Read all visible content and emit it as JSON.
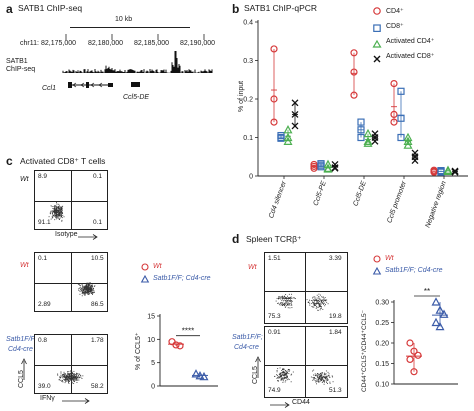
{
  "panel_a": {
    "letter": "a",
    "title": "SATB1 ChIP-seq",
    "scale": "10 kb",
    "chrom": "chr11:",
    "coords": [
      "82,175,000",
      "82,180,000",
      "82,185,000",
      "82,190,000"
    ],
    "track_label_1": "SATB1",
    "track_label_2": "ChIP-seq",
    "gene_1": "Ccl1",
    "gene_2": "Ccl5-DE"
  },
  "panel_b": {
    "letter": "b",
    "title": "SATB1 ChIP-qPCR",
    "ylabel": "% of input",
    "legend": [
      "CD4⁺",
      "CD8⁺",
      "Activated CD4⁺",
      "Activated CD8⁺"
    ],
    "colors": {
      "cd4": "#d6393a",
      "cd8": "#3b6fb6",
      "act_cd4": "#4caf50",
      "act_cd8": "#111111"
    }
  },
  "chart_data": {
    "type": "scatter",
    "categories": [
      "Cd4 silencer",
      "Ccl5-PE",
      "Ccl5-DE",
      "Ccl5 promoter",
      "Negative region"
    ],
    "ylabel": "% of input",
    "ylim": [
      0,
      0.4
    ],
    "yticks": [
      "0",
      "0.1",
      "0.2",
      "0.3",
      "0.4"
    ],
    "series": [
      {
        "name": "CD4⁺",
        "marker": "circle",
        "color": "#d6393a",
        "values": [
          [
            0.33,
            0.2,
            0.14
          ],
          [
            0.03,
            0.025,
            0.02
          ],
          [
            0.32,
            0.27,
            0.21
          ],
          [
            0.24,
            0.16,
            0.14
          ],
          [
            0.015,
            0.01,
            0.012
          ]
        ]
      },
      {
        "name": "CD8⁺",
        "marker": "square",
        "color": "#3b6fb6",
        "values": [
          [
            0.105,
            0.1,
            0.098
          ],
          [
            0.032,
            0.028,
            0.024
          ],
          [
            0.14,
            0.12,
            0.1
          ],
          [
            0.22,
            0.15,
            0.1
          ],
          [
            0.012,
            0.01,
            0.014
          ]
        ]
      },
      {
        "name": "Activated CD4⁺",
        "marker": "triangle",
        "color": "#4caf50",
        "values": [
          [
            0.12,
            0.1,
            0.09
          ],
          [
            0.03,
            0.02,
            0.018
          ],
          [
            0.11,
            0.09,
            0.085
          ],
          [
            0.1,
            0.09,
            0.08
          ],
          [
            0.015,
            0.012,
            0.013
          ]
        ]
      },
      {
        "name": "Activated CD8⁺",
        "marker": "x",
        "color": "#111111",
        "values": [
          [
            0.19,
            0.16,
            0.13
          ],
          [
            0.03,
            0.022,
            0.02
          ],
          [
            0.11,
            0.1,
            0.09
          ],
          [
            0.06,
            0.05,
            0.04
          ],
          [
            0.013,
            0.011,
            0.01
          ]
        ]
      }
    ]
  },
  "panel_c": {
    "letter": "c",
    "title": "Activated CD8⁺ T cells",
    "row_labels": [
      "Wt",
      "Wt",
      "Satb1F/F;",
      "Cd4-cre"
    ],
    "plots": [
      {
        "q": [
          "8.9",
          "0.1",
          "91.1",
          "0.1"
        ]
      },
      {
        "q": [
          "0.1",
          "10.5",
          "2.89",
          "86.5"
        ]
      },
      {
        "q": [
          "0.8",
          "1.78",
          "39.0",
          "58.2"
        ]
      }
    ],
    "xlabel_1": "Isotype",
    "xlabel_2": "IFNγ",
    "ylabel": "CCL5",
    "legend": [
      "Wt",
      "Satb1F/F; Cd4-cre"
    ],
    "stat_ylabel": "% of CCL5⁺",
    "stat_yticks": [
      "0",
      "5",
      "10",
      "15"
    ],
    "sig": "****",
    "stat_values": {
      "wt": [
        9.5,
        8.8,
        8.6
      ],
      "ko": [
        2.6,
        2.2,
        2.0
      ]
    }
  },
  "panel_d": {
    "letter": "d",
    "title": "Spleen TCRβ⁺",
    "row_labels": [
      "Wt",
      "Satb1F/F;",
      "Cd4-cre"
    ],
    "plots": [
      {
        "q": [
          "1.51",
          "3.39",
          "75.3",
          "19.8"
        ]
      },
      {
        "q": [
          "0.91",
          "1.84",
          "74.9",
          "51.3"
        ]
      }
    ],
    "xlabel": "CD44",
    "ylabel": "CCL5",
    "legend": [
      "Wt",
      "Satb1F/F; Cd4-cre"
    ],
    "stat_ylabel": "CD44⁺CCL5⁺/CD44⁺CCL5⁻",
    "stat_yticks": [
      "0.10",
      "0.15",
      "0.20",
      "0.25",
      "0.30"
    ],
    "sig": "**",
    "stat_values": {
      "wt": [
        0.2,
        0.18,
        0.17,
        0.16,
        0.13
      ],
      "ko": [
        0.3,
        0.28,
        0.27,
        0.25,
        0.24
      ]
    }
  }
}
